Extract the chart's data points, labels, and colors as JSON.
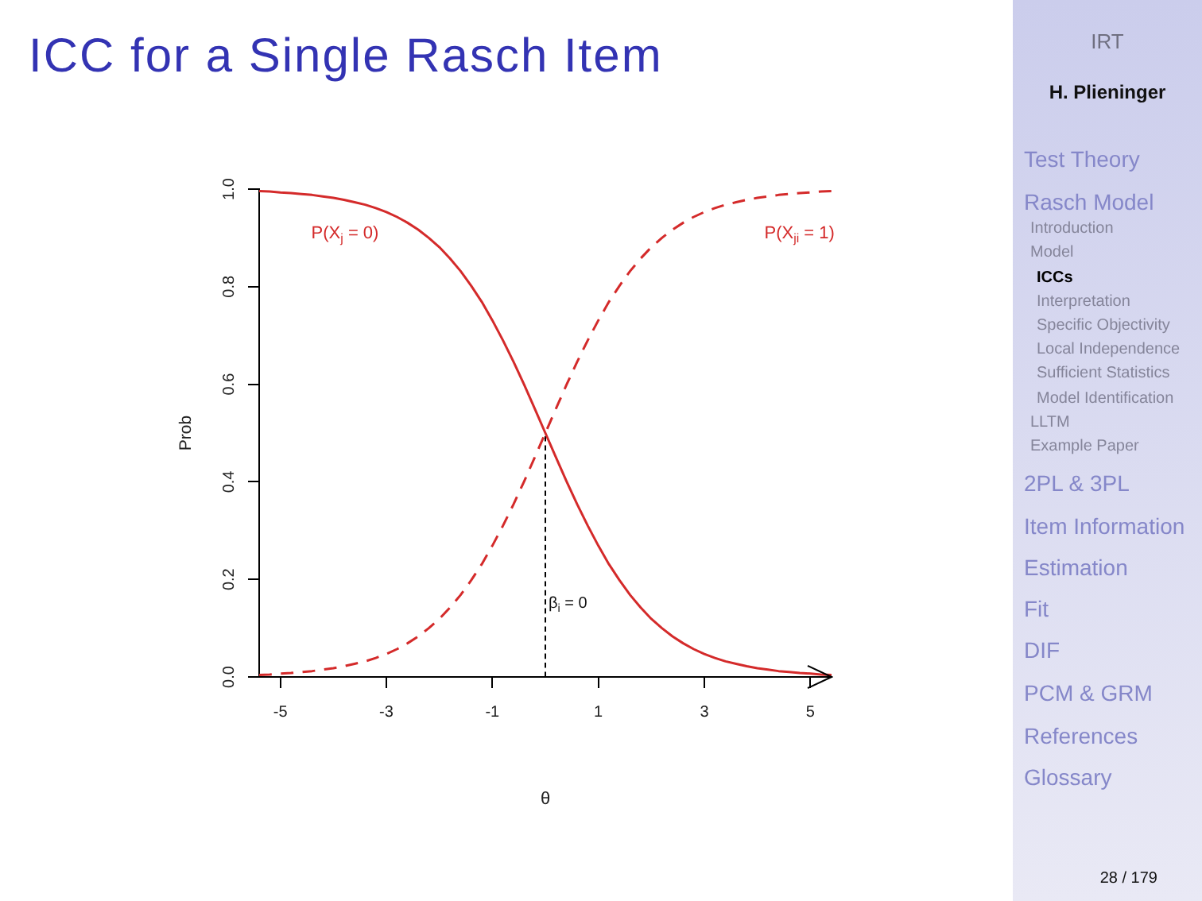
{
  "chart_data": {
    "type": "line",
    "title": "ICC for a Single Rasch Item",
    "xlabel": "θ",
    "ylabel": "Prob",
    "x": [
      -5.4,
      -5.2,
      -5,
      -4.8,
      -4.6,
      -4.4,
      -4.2,
      -4,
      -3.8,
      -3.6,
      -3.4,
      -3.2,
      -3,
      -2.8,
      -2.6,
      -2.4,
      -2.2,
      -2,
      -1.8,
      -1.6,
      -1.4,
      -1.2,
      -1,
      -0.8,
      -0.6,
      -0.4,
      -0.2,
      0,
      0.2,
      0.4,
      0.6,
      0.8,
      1,
      1.2,
      1.4,
      1.6,
      1.8,
      2,
      2.2,
      2.4,
      2.6,
      2.8,
      3,
      3.2,
      3.4,
      3.6,
      3.8,
      4,
      4.2,
      4.4,
      4.6,
      4.8,
      5,
      5.2,
      5.4
    ],
    "series": [
      {
        "name": "P(X$_{j}$ = 0)",
        "color": "#d42a2a",
        "line_style": "solid",
        "values": [
          0.996,
          0.995,
          0.993,
          0.992,
          0.99,
          0.988,
          0.985,
          0.982,
          0.978,
          0.973,
          0.968,
          0.961,
          0.953,
          0.943,
          0.931,
          0.917,
          0.9,
          0.881,
          0.858,
          0.832,
          0.802,
          0.769,
          0.731,
          0.69,
          0.646,
          0.599,
          0.55,
          0.5,
          0.45,
          0.401,
          0.354,
          0.31,
          0.269,
          0.231,
          0.198,
          0.168,
          0.142,
          0.119,
          0.1,
          0.083,
          0.069,
          0.057,
          0.047,
          0.039,
          0.032,
          0.027,
          0.022,
          0.018,
          0.015,
          0.012,
          0.01,
          0.008,
          0.007,
          0.005,
          0.004
        ]
      },
      {
        "name": "P(X$_{ji}$ = 1)",
        "color": "#d42a2a",
        "line_style": "dashed",
        "values": [
          0.004,
          0.005,
          0.007,
          0.008,
          0.01,
          0.012,
          0.015,
          0.018,
          0.022,
          0.027,
          0.032,
          0.039,
          0.047,
          0.057,
          0.069,
          0.083,
          0.1,
          0.119,
          0.142,
          0.168,
          0.198,
          0.231,
          0.269,
          0.31,
          0.354,
          0.401,
          0.45,
          0.5,
          0.55,
          0.599,
          0.646,
          0.69,
          0.731,
          0.769,
          0.802,
          0.832,
          0.858,
          0.881,
          0.9,
          0.917,
          0.931,
          0.943,
          0.953,
          0.961,
          0.968,
          0.973,
          0.978,
          0.982,
          0.985,
          0.988,
          0.99,
          0.992,
          0.993,
          0.995,
          0.996
        ]
      },
      {
        "type": "line",
        "x": [
          0,
          0
        ],
        "values": [
          0,
          0.5
        ],
        "color": "#000000",
        "line_style": "dashed"
      }
    ],
    "xlim": [
      -5.4,
      5.4
    ],
    "ylim": [
      0,
      1
    ],
    "xticks": [
      -5,
      -3,
      -1,
      1,
      3,
      5
    ],
    "yticks": [
      {
        "value": 0,
        "label": "0.0"
      },
      0.2,
      0.4,
      0.6,
      0.8,
      {
        "value": 1,
        "label": "1.0"
      }
    ],
    "marker": "none",
    "annotations": [
      {
        "text": "β$_{i}$ = 0",
        "x": 0,
        "y": 0.15
      },
      "IRT",
      "H. Plieninger",
      "Test Theory",
      "Rasch Model",
      "Introduction",
      "Model",
      "ICCs",
      "Interpretation",
      "Specific Objectivity",
      "Local Independence",
      "Sufficient Statistics",
      "Model Identification",
      "LLTM",
      "Example Paper",
      "2PL & 3PL",
      "Item Information",
      "Estimation",
      "Fit",
      "DIF",
      "PCM & GRM",
      "References",
      "Glossary",
      "28 / 179"
    ]
  }
}
